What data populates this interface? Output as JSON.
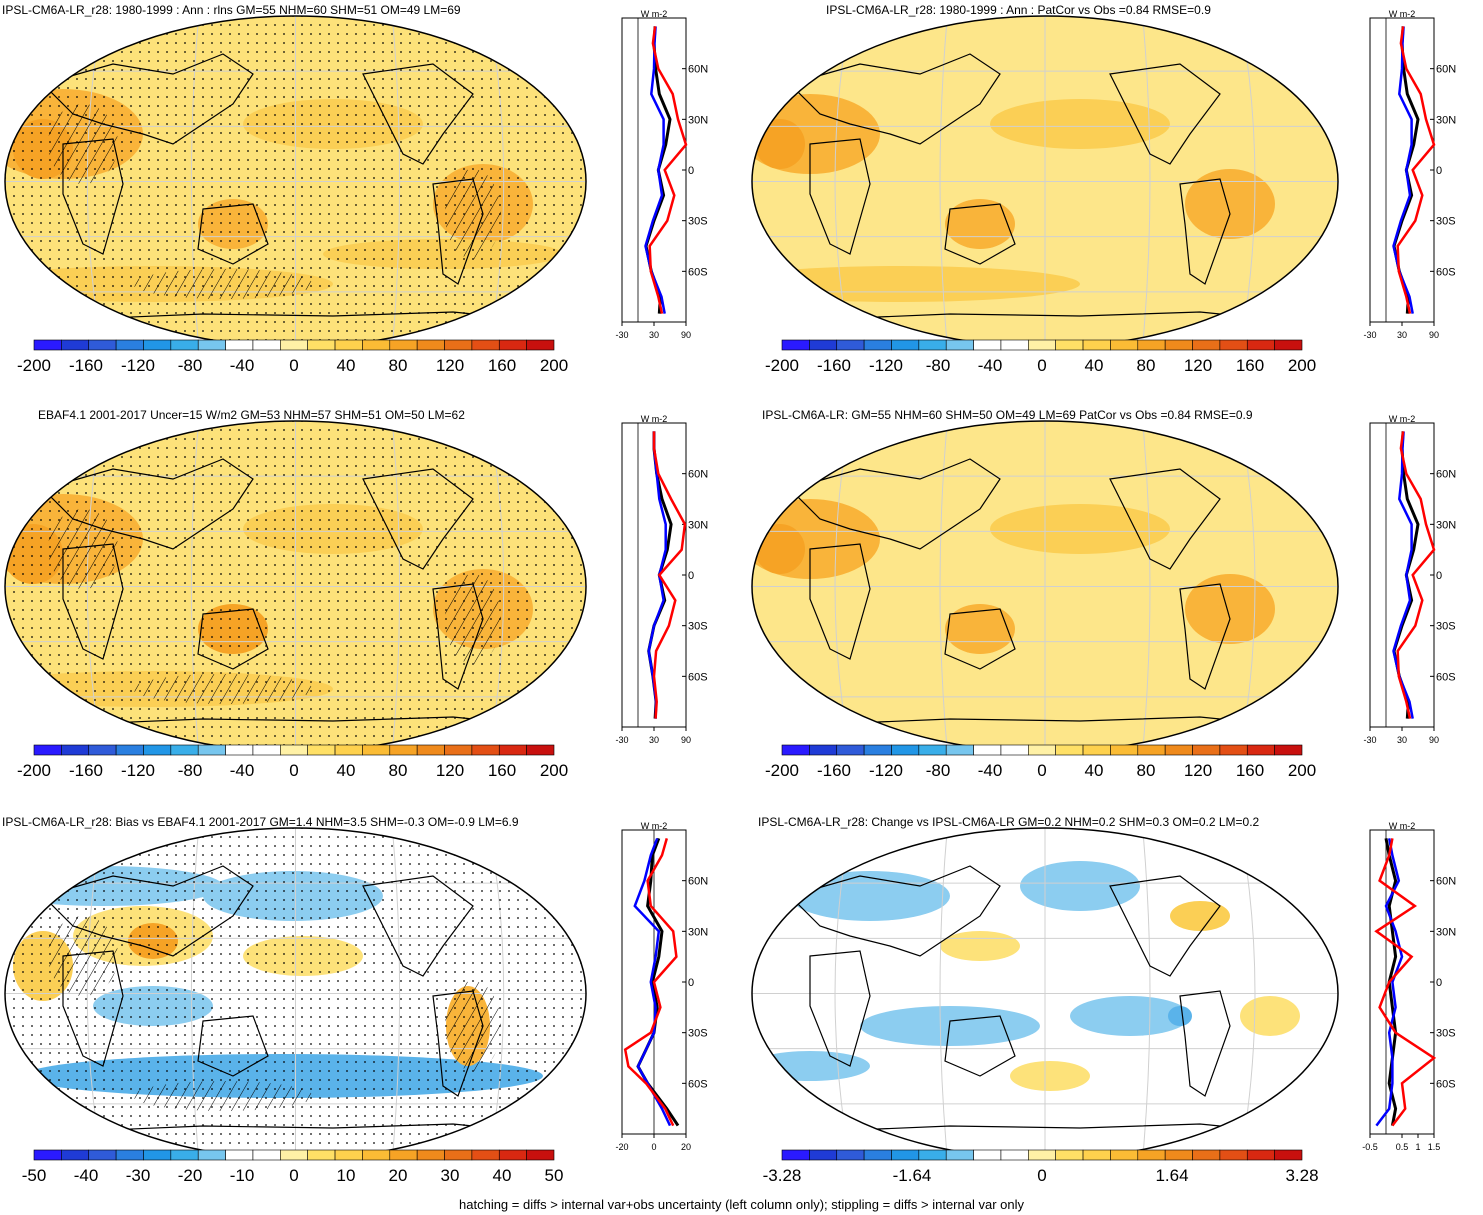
{
  "footnote": "hatching = diffs > internal var+obs uncertainty (left column only); stippling = diffs > internal var only",
  "colors": {
    "neg": [
      "#2a1aff",
      "#1f3bd6",
      "#2f5bd9",
      "#2a7fe0",
      "#2196e6",
      "#39aee9",
      "#77c6ee"
    ],
    "zero": "#ffffff",
    "pos": [
      "#fff1a6",
      "#ffe066",
      "#fed14d",
      "#fbbc35",
      "#f6a325",
      "#ef8a1c",
      "#e96f18",
      "#e34f15",
      "#d92811",
      "#c8100e"
    ],
    "model": "#000000",
    "obs_model": "#0000ff",
    "other": "#ff0000"
  },
  "panels": [
    {
      "id": "p1",
      "title": "IPSL-CM6A-LR_r28: 1980-1999 : Ann : rlns GM=55 NHM=60 SHM=51 OM=49 LM=69",
      "colorbar_labels": [
        "-200",
        "-160",
        "-120",
        "-80",
        "-40",
        "0",
        "40",
        "80",
        "120",
        "160",
        "200"
      ],
      "chart_data": {
        "type": "line",
        "title": "",
        "units": "W m-2",
        "xlim": [
          -30,
          90
        ],
        "xticks": [
          "-30",
          "30",
          "90"
        ],
        "yticks": [
          "60N",
          "30N",
          "0",
          "30S",
          "60S"
        ],
        "ylim": [
          -90,
          90
        ],
        "series": [
          {
            "color": "#000000",
            "lat": [
              -85,
              -75,
              -60,
              -45,
              -30,
              -15,
              0,
              15,
              30,
              45,
              60,
              75,
              85
            ],
            "values": [
              40,
              42,
              25,
              15,
              30,
              48,
              38,
              52,
              60,
              40,
              33,
              30,
              32
            ]
          },
          {
            "color": "#0000ff",
            "lat": [
              -85,
              -75,
              -60,
              -45,
              -30,
              -15,
              0,
              15,
              30,
              45,
              60,
              75,
              85
            ],
            "values": [
              50,
              44,
              25,
              14,
              28,
              45,
              38,
              48,
              48,
              25,
              30,
              31,
              33
            ]
          },
          {
            "color": "#ff0000",
            "lat": [
              -85,
              -75,
              -60,
              -45,
              -30,
              -15,
              0,
              15,
              30,
              45,
              60,
              75,
              85
            ],
            "values": [
              45,
              38,
              24,
              22,
              55,
              68,
              50,
              90,
              75,
              65,
              38,
              28,
              32
            ]
          }
        ]
      }
    },
    {
      "id": "p2",
      "title": "IPSL-CM6A-LR_r28: 1980-1999 : Ann : PatCor vs Obs =0.84 RMSE=0.9",
      "colorbar_labels": [
        "-200",
        "-160",
        "-120",
        "-80",
        "-40",
        "0",
        "40",
        "80",
        "120",
        "160",
        "200"
      ],
      "chart_data": {
        "type": "line",
        "title": "",
        "units": "W m-2",
        "xlim": [
          -30,
          90
        ],
        "xticks": [
          "-30",
          "30",
          "90"
        ],
        "yticks": [
          "60N",
          "30N",
          "0",
          "30S",
          "60S"
        ],
        "ylim": [
          -90,
          90
        ],
        "series": [
          {
            "color": "#000000",
            "lat": [
              -85,
              -75,
              -60,
              -45,
              -30,
              -15,
              0,
              15,
              30,
              45,
              60,
              75,
              85
            ],
            "values": [
              40,
              42,
              25,
              15,
              30,
              48,
              38,
              52,
              60,
              40,
              33,
              30,
              32
            ]
          },
          {
            "color": "#0000ff",
            "lat": [
              -85,
              -75,
              -60,
              -45,
              -30,
              -15,
              0,
              15,
              30,
              45,
              60,
              75,
              85
            ],
            "values": [
              50,
              44,
              25,
              14,
              28,
              45,
              38,
              48,
              48,
              25,
              30,
              31,
              33
            ]
          },
          {
            "color": "#ff0000",
            "lat": [
              -85,
              -75,
              -60,
              -45,
              -30,
              -15,
              0,
              15,
              30,
              45,
              60,
              75,
              85
            ],
            "values": [
              45,
              38,
              24,
              22,
              55,
              68,
              50,
              90,
              75,
              65,
              38,
              28,
              32
            ]
          }
        ]
      }
    },
    {
      "id": "p3",
      "title": "EBAF4.1 2001-2017 Uncer=15 W/m2 GM=53 NHM=57 SHM=51 OM=50 LM=62",
      "colorbar_labels": [
        "-200",
        "-160",
        "-120",
        "-80",
        "-40",
        "0",
        "40",
        "80",
        "120",
        "160",
        "200"
      ],
      "chart_data": {
        "type": "line",
        "title": "",
        "units": "W m-2",
        "xlim": [
          -30,
          90
        ],
        "xticks": [
          "-30",
          "30",
          "90"
        ],
        "yticks": [
          "60N",
          "30N",
          "0",
          "30S",
          "60S"
        ],
        "ylim": [
          -90,
          90
        ],
        "series": [
          {
            "color": "#000000",
            "lat": [
              -85,
              -75,
              -60,
              -45,
              -30,
              -15,
              0,
              15,
              30,
              45,
              60,
              75,
              85
            ],
            "values": [
              32,
              34,
              28,
              20,
              30,
              50,
              40,
              55,
              62,
              45,
              35,
              30,
              30
            ]
          },
          {
            "color": "#0000ff",
            "lat": [
              -85,
              -75,
              -60,
              -45,
              -30,
              -15,
              0,
              15,
              30,
              45,
              60,
              75,
              85
            ],
            "values": [
              33,
              34,
              28,
              20,
              30,
              48,
              40,
              52,
              52,
              40,
              35,
              30,
              30
            ]
          },
          {
            "color": "#ff0000",
            "lat": [
              -85,
              -75,
              -60,
              -45,
              -30,
              -15,
              0,
              15,
              30,
              45,
              60,
              75,
              85
            ],
            "values": [
              33,
              35,
              30,
              34,
              58,
              70,
              40,
              82,
              88,
              62,
              38,
              30,
              30
            ]
          }
        ]
      }
    },
    {
      "id": "p4",
      "title": "IPSL-CM6A-LR: GM=55 NHM=60 SHM=50 OM=49 LM=69 PatCor vs Obs =0.84 RMSE=0.9",
      "colorbar_labels": [
        "-200",
        "-160",
        "-120",
        "-80",
        "-40",
        "0",
        "40",
        "80",
        "120",
        "160",
        "200"
      ],
      "chart_data": {
        "type": "line",
        "title": "",
        "units": "W m-2",
        "xlim": [
          -30,
          90
        ],
        "xticks": [
          "-30",
          "30",
          "90"
        ],
        "yticks": [
          "60N",
          "30N",
          "0",
          "30S",
          "60S"
        ],
        "ylim": [
          -90,
          90
        ],
        "series": [
          {
            "color": "#000000",
            "lat": [
              -85,
              -75,
              -60,
              -45,
              -30,
              -15,
              0,
              15,
              30,
              45,
              60,
              75,
              85
            ],
            "values": [
              40,
              42,
              25,
              15,
              30,
              48,
              38,
              52,
              60,
              40,
              33,
              30,
              32
            ]
          },
          {
            "color": "#0000ff",
            "lat": [
              -85,
              -75,
              -60,
              -45,
              -30,
              -15,
              0,
              15,
              30,
              45,
              60,
              75,
              85
            ],
            "values": [
              50,
              44,
              25,
              14,
              28,
              45,
              38,
              48,
              48,
              25,
              30,
              31,
              33
            ]
          },
          {
            "color": "#ff0000",
            "lat": [
              -85,
              -75,
              -60,
              -45,
              -30,
              -15,
              0,
              15,
              30,
              45,
              60,
              75,
              85
            ],
            "values": [
              45,
              38,
              24,
              22,
              55,
              68,
              50,
              90,
              75,
              65,
              38,
              28,
              32
            ]
          }
        ]
      }
    },
    {
      "id": "p5",
      "title": "IPSL-CM6A-LR_r28: Bias vs EBAF4.1 2001-2017 GM=1.4 NHM=3.5 SHM=-0.3 OM=-0.9 LM=6.9",
      "colorbar_labels": [
        "-50",
        "-40",
        "-30",
        "-20",
        "-10",
        "0",
        "10",
        "20",
        "30",
        "40",
        "50"
      ],
      "chart_data": {
        "type": "line",
        "title": "",
        "units": "W m-2",
        "xlim": [
          -20,
          20
        ],
        "xticks": [
          "-20",
          "0",
          "20"
        ],
        "yticks": [
          "60N",
          "30N",
          "0",
          "30S",
          "60S"
        ],
        "ylim": [
          -90,
          90
        ],
        "series": [
          {
            "color": "#000000",
            "lat": [
              -85,
              -75,
              -60,
              -50,
              -40,
              -30,
              -15,
              0,
              15,
              30,
              45,
              60,
              75,
              85
            ],
            "values": [
              15,
              8,
              -4,
              -10,
              -5,
              0,
              2,
              -1,
              3,
              5,
              -4,
              -2,
              -1,
              3
            ]
          },
          {
            "color": "#0000ff",
            "lat": [
              -85,
              -75,
              -60,
              -50,
              -40,
              -30,
              -15,
              0,
              15,
              30,
              45,
              60,
              75,
              85
            ],
            "values": [
              10,
              5,
              -4,
              -10,
              -5,
              0,
              1,
              -2,
              1,
              3,
              -12,
              -6,
              -2,
              2
            ]
          },
          {
            "color": "#ff0000",
            "lat": [
              -85,
              -75,
              -60,
              -50,
              -40,
              -30,
              -15,
              0,
              15,
              30,
              45,
              60,
              75,
              85
            ],
            "values": [
              12,
              7,
              -5,
              -16,
              -18,
              -2,
              4,
              0,
              14,
              12,
              -2,
              -4,
              5,
              8
            ]
          }
        ]
      }
    },
    {
      "id": "p6",
      "title": "IPSL-CM6A-LR_r28: Change vs IPSL-CM6A-LR GM=0.2 NHM=0.2 SHM=0.3 OM=0.2 LM=0.2",
      "colorbar_labels": [
        "-3.28",
        "-1.64",
        "0",
        "1.64",
        "3.28"
      ],
      "chart_data": {
        "type": "line",
        "title": "",
        "units": "W m-2",
        "xlim": [
          -0.5,
          1.5
        ],
        "xticks": [
          "-0.5",
          "0.5",
          "1",
          "1.5"
        ],
        "yticks": [
          "60N",
          "30N",
          "0",
          "30S",
          "60S"
        ],
        "ylim": [
          -90,
          90
        ],
        "series": [
          {
            "color": "#000000",
            "lat": [
              -85,
              -75,
              -60,
              -45,
              -30,
              -15,
              0,
              15,
              30,
              45,
              60,
              75,
              85
            ],
            "values": [
              0.2,
              0.3,
              0.1,
              0.2,
              0.3,
              0.2,
              0.1,
              0.3,
              0.2,
              0.1,
              0.3,
              0.1,
              0.0
            ]
          },
          {
            "color": "#0000ff",
            "lat": [
              -85,
              -75,
              -60,
              -45,
              -30,
              -15,
              0,
              15,
              30,
              45,
              60,
              75,
              85
            ],
            "values": [
              -0.3,
              0.1,
              0.2,
              0.2,
              0.1,
              0.3,
              0.2,
              0.5,
              0.3,
              0.0,
              0.4,
              0.2,
              0.1
            ]
          },
          {
            "color": "#ff0000",
            "lat": [
              -85,
              -75,
              -60,
              -45,
              -30,
              -15,
              0,
              15,
              30,
              45,
              60,
              75,
              85
            ],
            "values": [
              0.2,
              0.6,
              0.5,
              1.5,
              0.3,
              -0.2,
              0.1,
              0.8,
              -0.3,
              0.9,
              -0.2,
              0.1,
              0.2
            ]
          }
        ]
      }
    }
  ]
}
